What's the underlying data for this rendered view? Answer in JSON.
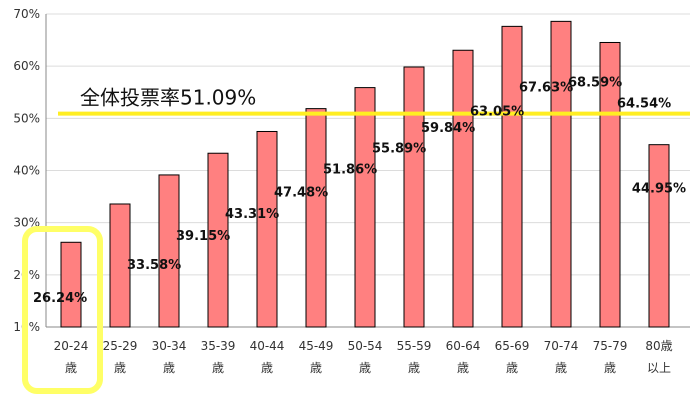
{
  "chart_data": {
    "type": "bar",
    "categories": [
      [
        "20-24",
        "歳"
      ],
      [
        "25-29",
        "歳"
      ],
      [
        "30-34",
        "歳"
      ],
      [
        "35-39",
        "歳"
      ],
      [
        "40-44",
        "歳"
      ],
      [
        "45-49",
        "歳"
      ],
      [
        "50-54",
        "歳"
      ],
      [
        "55-59",
        "歳"
      ],
      [
        "60-64",
        "歳"
      ],
      [
        "65-69",
        "歳"
      ],
      [
        "70-74",
        "歳"
      ],
      [
        "75-79",
        "歳"
      ],
      [
        "80歳",
        "以上"
      ]
    ],
    "values": [
      26.24,
      33.58,
      39.15,
      43.31,
      47.48,
      51.86,
      55.89,
      59.84,
      63.05,
      67.63,
      68.59,
      64.54,
      44.95
    ],
    "value_labels": [
      "26.24%",
      "33.58%",
      "39.15%",
      "43.31%",
      "47.48%",
      "51.86%",
      "55.89%",
      "59.84%",
      "63.05%",
      "67.63%",
      "68.59%",
      "64.54%",
      "44.95%"
    ],
    "y_ticks": [
      "10%",
      "20%",
      "30%",
      "40%",
      "50%",
      "60%",
      "70%"
    ],
    "ylim": [
      10,
      70
    ],
    "grid": true,
    "reference_line": {
      "value": 51.09,
      "label": "全体投票率51.09%"
    },
    "highlighted_category_index": 0,
    "colors": {
      "bar_fill": "#ff8080",
      "bar_stroke": "#000000",
      "reference_line": "#ffee22",
      "highlight_box": "#ffff66",
      "grid": "#dcdcdc"
    }
  }
}
